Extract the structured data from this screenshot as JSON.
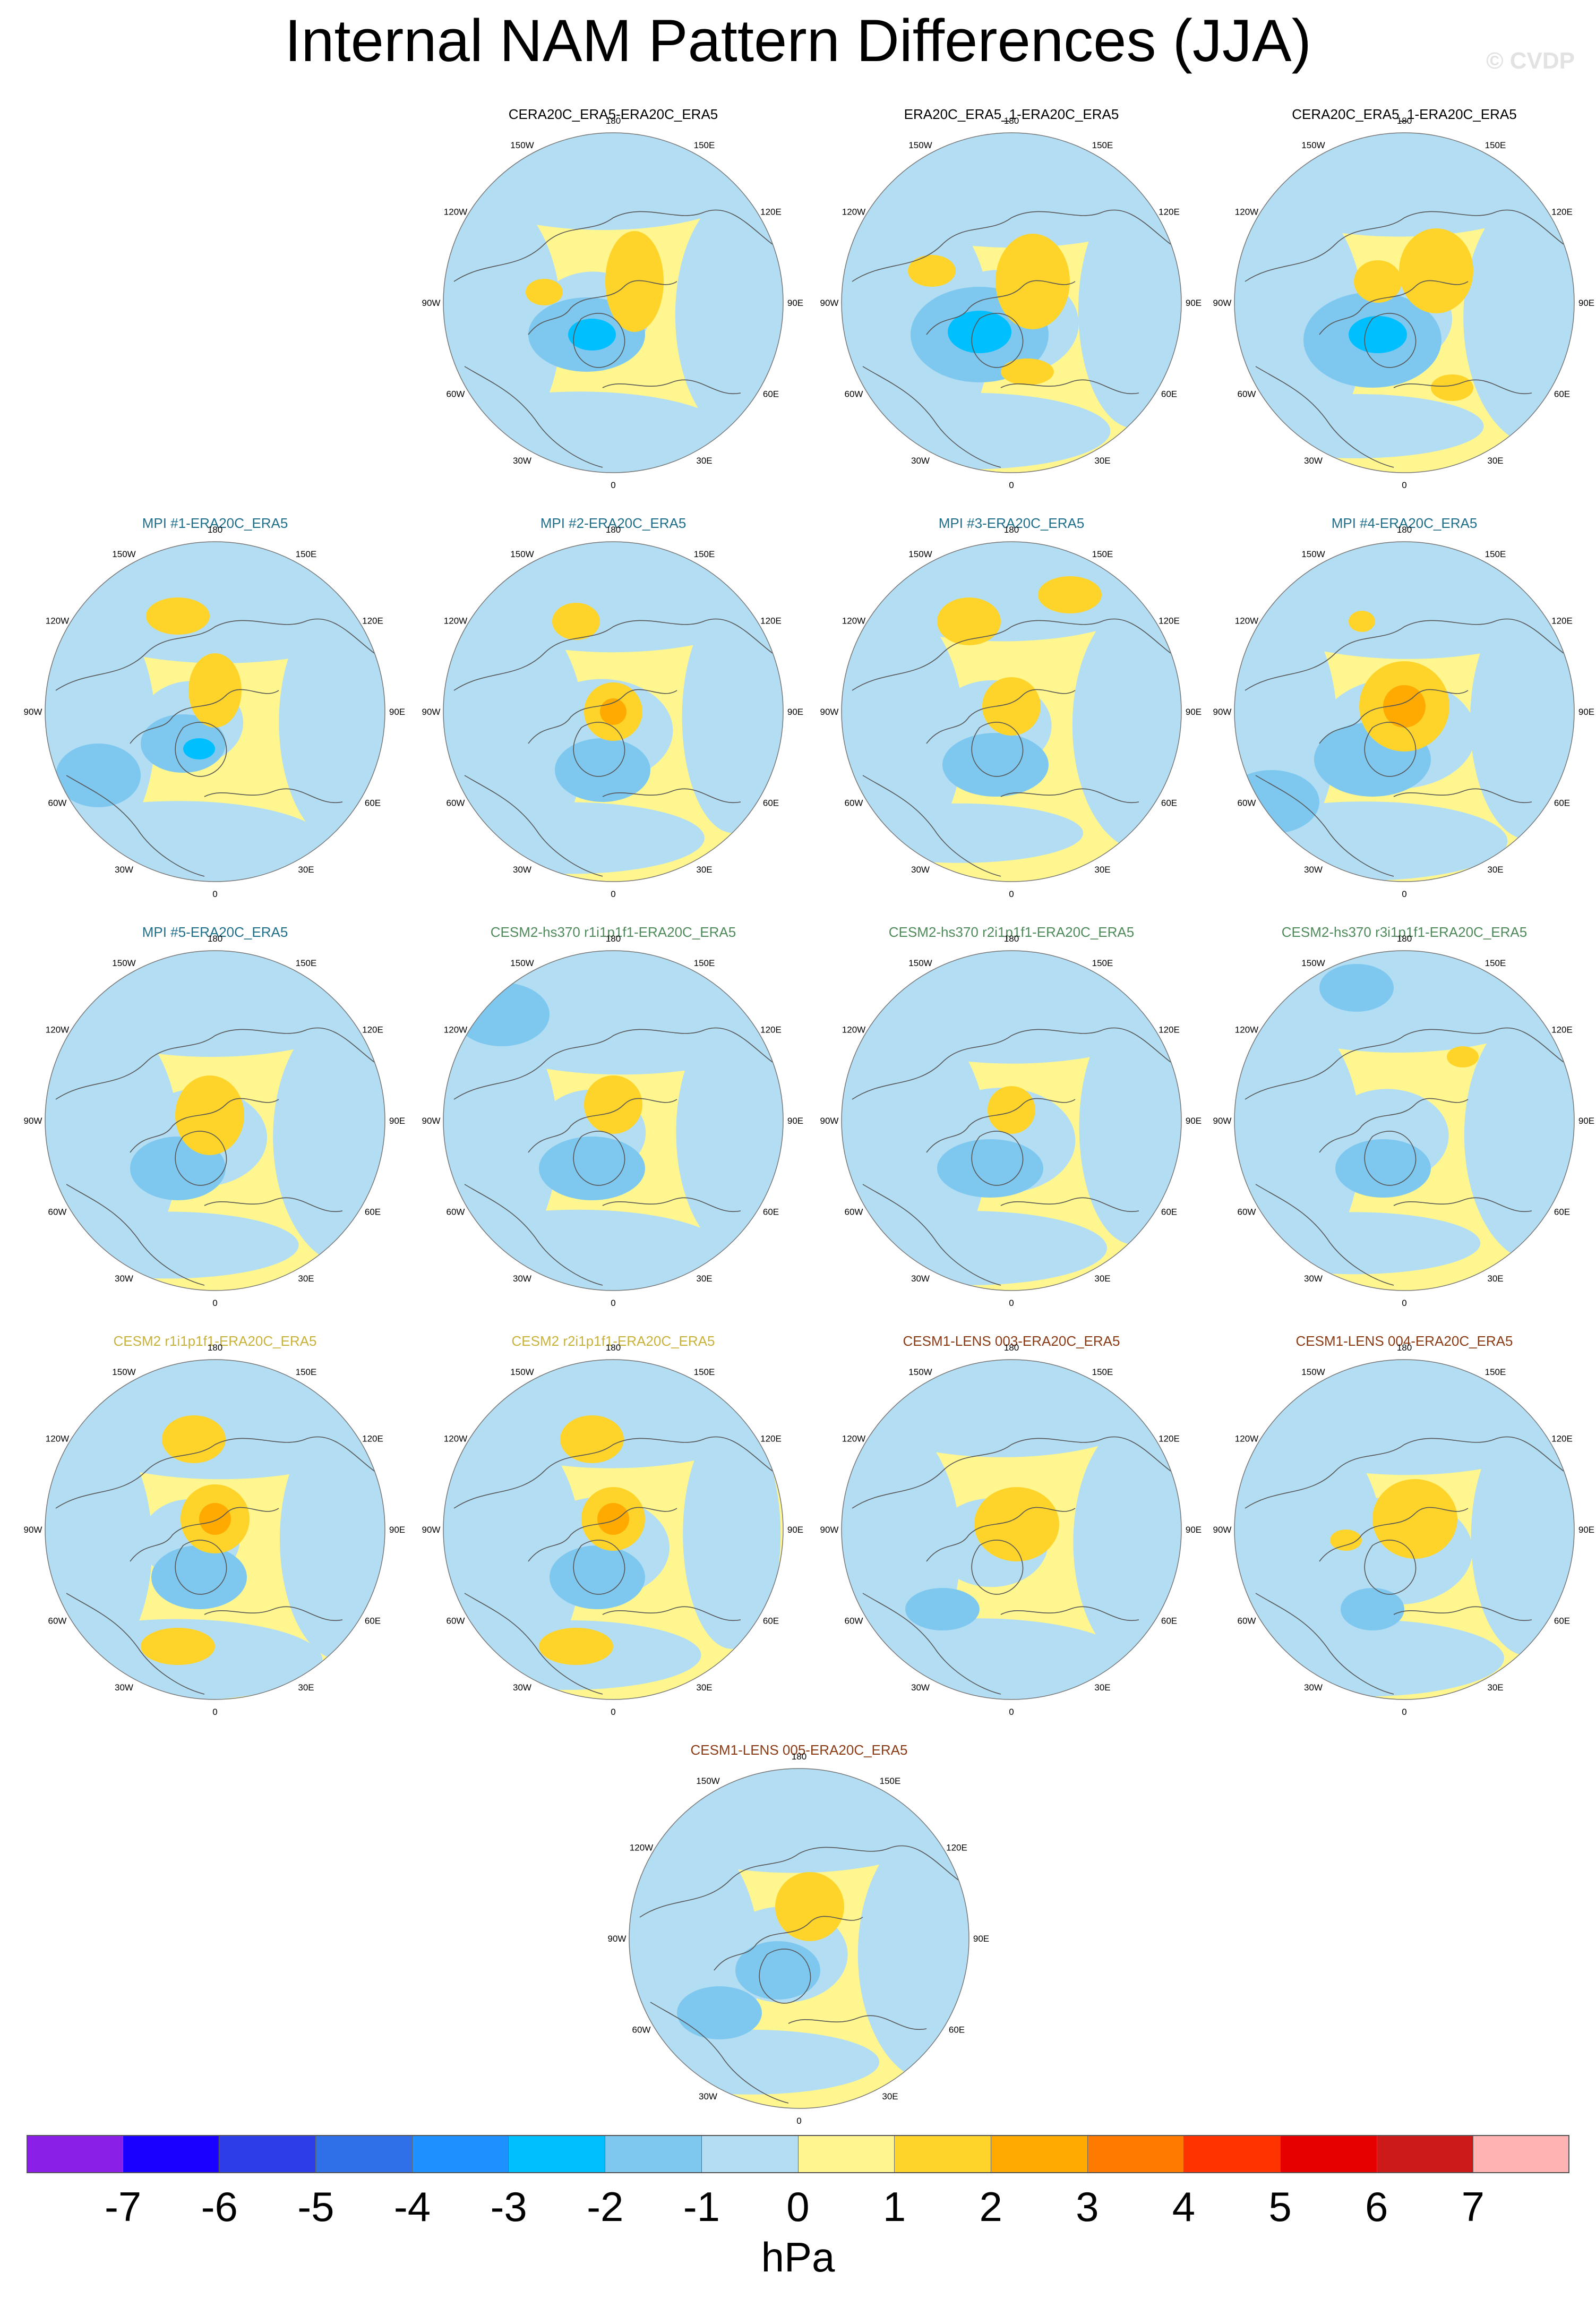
{
  "title": "Internal NAM Pattern Differences (JJA)",
  "watermark": "© CVDP",
  "panels": [
    {
      "title": "CERA20C_ERA5-ERA20C_ERA5",
      "color": "#000000"
    },
    {
      "title": "ERA20C_ERA5_1-ERA20C_ERA5",
      "color": "#000000"
    },
    {
      "title": "CERA20C_ERA5_1-ERA20C_ERA5",
      "color": "#000000"
    },
    {
      "title": "MPI #1-ERA20C_ERA5",
      "color": "#1f6f8b"
    },
    {
      "title": "MPI #2-ERA20C_ERA5",
      "color": "#1f6f8b"
    },
    {
      "title": "MPI #3-ERA20C_ERA5",
      "color": "#1f6f8b"
    },
    {
      "title": "MPI #4-ERA20C_ERA5",
      "color": "#1f6f8b"
    },
    {
      "title": "MPI #5-ERA20C_ERA5",
      "color": "#1f6f8b"
    },
    {
      "title": "CESM2-hs370 r1i1p1f1-ERA20C_ERA5",
      "color": "#4e8a5a"
    },
    {
      "title": "CESM2-hs370 r2i1p1f1-ERA20C_ERA5",
      "color": "#4e8a5a"
    },
    {
      "title": "CESM2-hs370 r3i1p1f1-ERA20C_ERA5",
      "color": "#4e8a5a"
    },
    {
      "title": "CESM2 r1i1p1f1-ERA20C_ERA5",
      "color": "#c9b23c"
    },
    {
      "title": "CESM2 r2i1p1f1-ERA20C_ERA5",
      "color": "#c9b23c"
    },
    {
      "title": "CESM1-LENS 003-ERA20C_ERA5",
      "color": "#8b3a14"
    },
    {
      "title": "CESM1-LENS 004-ERA20C_ERA5",
      "color": "#8b3a14"
    },
    {
      "title": "CESM1-LENS 005-ERA20C_ERA5",
      "color": "#8b3a14"
    }
  ],
  "longitude_labels": [
    "180",
    "150E",
    "120E",
    "90E",
    "60E",
    "30E",
    "0",
    "30W",
    "60W",
    "90W",
    "120W",
    "150W"
  ],
  "colorbar": {
    "unit": "hPa",
    "tick_labels": [
      "-7",
      "-6",
      "-5",
      "-4",
      "-3",
      "-2",
      "-1",
      "0",
      "1",
      "2",
      "3",
      "4",
      "5",
      "6",
      "7"
    ],
    "colors": [
      "#8a1fe8",
      "#1a00ff",
      "#2b3ee8",
      "#2f6fe8",
      "#1e90ff",
      "#00bfff",
      "#7ec8f0",
      "#b3ddf2",
      "#fff68f",
      "#ffd42a",
      "#ffaa00",
      "#ff7b00",
      "#ff3300",
      "#e60000",
      "#cc1a1a",
      "#ffb3b3"
    ]
  },
  "field_colors": {
    "neg1": "#b3ddf2",
    "neg2": "#7ec8f0",
    "neg3": "#00bfff",
    "pos1": "#fff68f",
    "pos2": "#ffd42a",
    "pos3": "#ffaa00"
  }
}
